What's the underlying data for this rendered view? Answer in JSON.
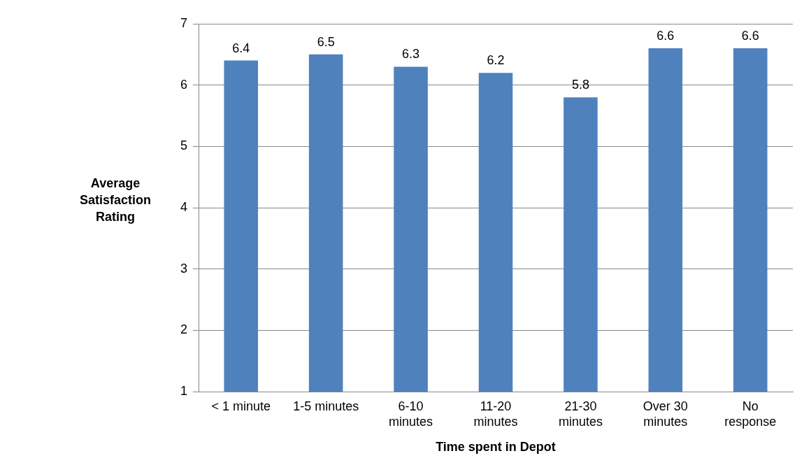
{
  "chart_data": {
    "type": "bar",
    "categories": [
      "< 1 minute",
      "1-5 minutes",
      "6-10 minutes",
      "11-20 minutes",
      "21-30 minutes",
      "Over 30 minutes",
      "No response"
    ],
    "values": [
      6.4,
      6.5,
      6.3,
      6.2,
      5.8,
      6.6,
      6.6
    ],
    "color": "#4f81bd",
    "ylim": [
      1,
      7
    ],
    "yticks": [
      1,
      2,
      3,
      4,
      5,
      6,
      7
    ],
    "grid": "y",
    "data_labels": true,
    "legend": false,
    "xlabel": "Time spent in Depot",
    "ylabel": "Average Satisfaction Rating"
  }
}
